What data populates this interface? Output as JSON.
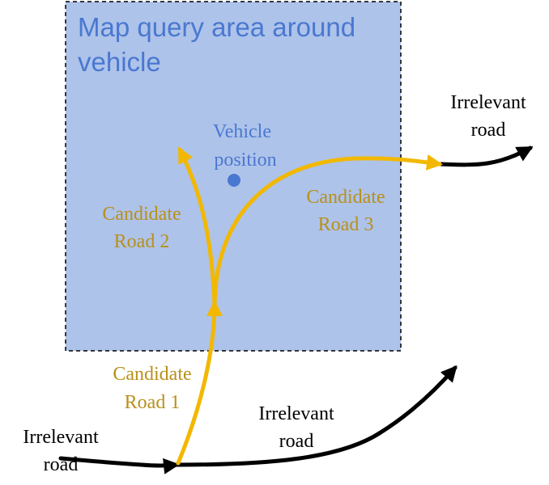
{
  "query_area": {
    "title_line1": "Map query area around",
    "title_line2": "vehicle",
    "fill_color": "#aec3ea",
    "title_color": "#4a78d0"
  },
  "vehicle": {
    "label_line1": "Vehicle",
    "label_line2": "position",
    "color": "#4a78d0"
  },
  "candidate_roads": {
    "color": "#f2b800",
    "label_color": "#b8901a",
    "road1": {
      "line1": "Candidate",
      "line2": "Road 1"
    },
    "road2": {
      "line1": "Candidate",
      "line2": "Road 2"
    },
    "road3": {
      "line1": "Candidate",
      "line2": "Road 3"
    }
  },
  "irrelevant_roads": {
    "color": "#000000",
    "left": {
      "line1": "Irrelevant",
      "line2": "road"
    },
    "bottom": {
      "line1": "Irrelevant",
      "line2": "road"
    },
    "top_right": {
      "line1": "Irrelevant",
      "line2": "road"
    }
  }
}
